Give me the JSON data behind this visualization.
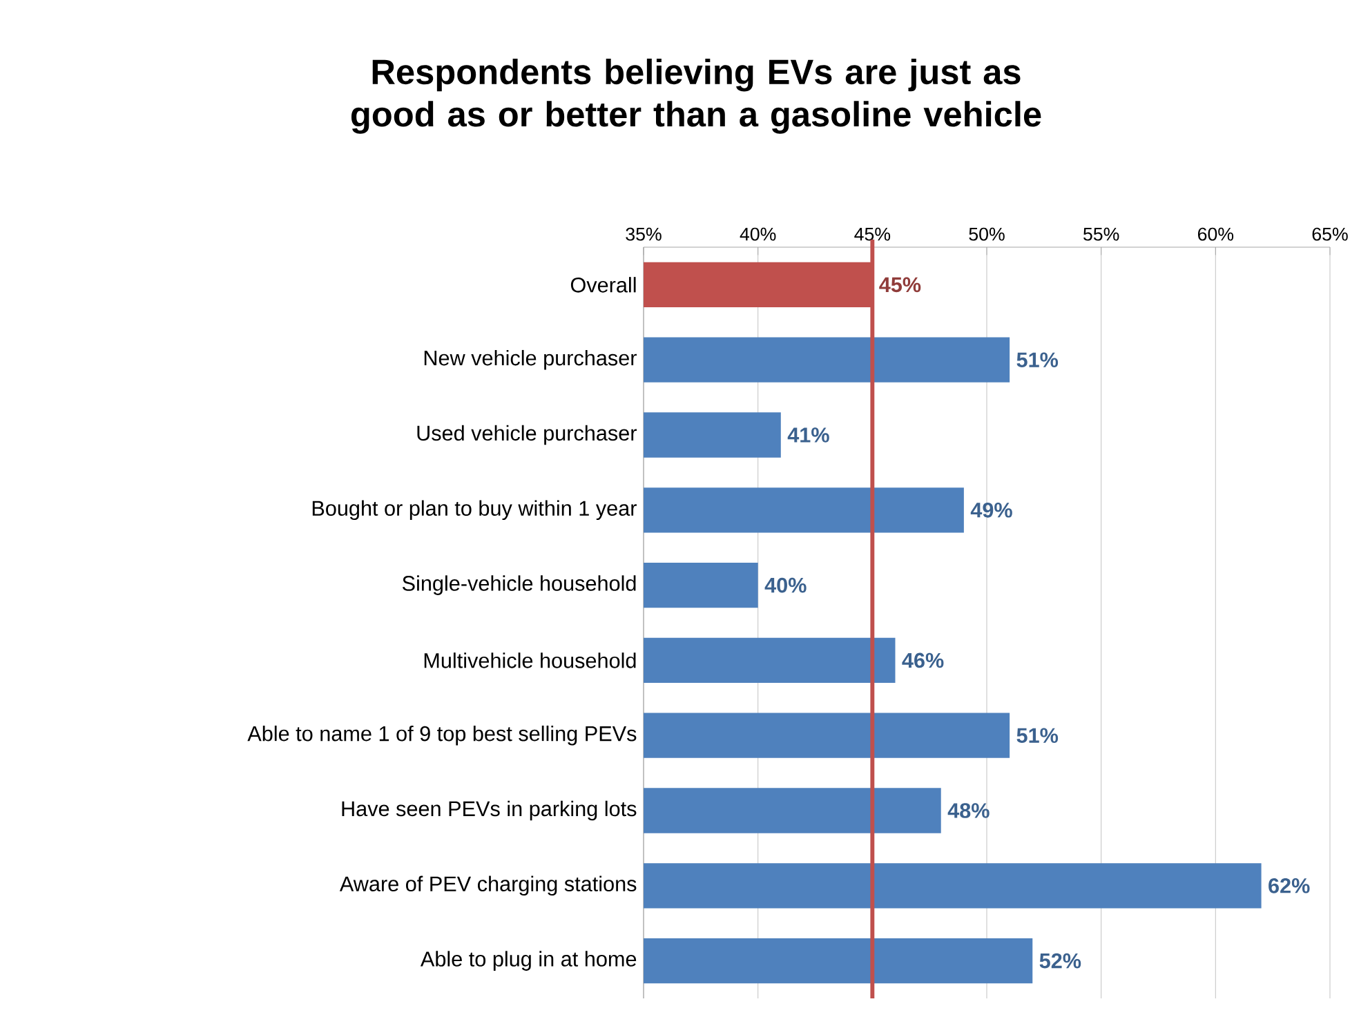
{
  "chart_data": {
    "type": "bar",
    "orientation": "horizontal",
    "title": "Respondents believing EVs are just as good as or better than a gasoline vehicle",
    "categories": [
      "Overall",
      "New vehicle purchaser",
      "Used vehicle purchaser",
      "Bought or plan to buy within 1 year",
      "Single-vehicle household",
      "Multivehicle household",
      "Able to name 1 of 9 top best selling PEVs",
      "Have seen PEVs in parking lots",
      "Aware of PEV charging stations",
      "Able to plug in at home"
    ],
    "values": [
      45,
      51,
      41,
      49,
      40,
      46,
      51,
      48,
      62,
      52
    ],
    "value_labels": [
      "45%",
      "51%",
      "41%",
      "49%",
      "40%",
      "46%",
      "51%",
      "48%",
      "62%",
      "52%"
    ],
    "colors": [
      "#c0504d",
      "#4f81bd",
      "#4f81bd",
      "#4f81bd",
      "#4f81bd",
      "#4f81bd",
      "#4f81bd",
      "#4f81bd",
      "#4f81bd",
      "#4f81bd"
    ],
    "xlim": [
      35,
      65
    ],
    "xticks": [
      {
        "value": 35,
        "label": "35%"
      },
      {
        "value": 40,
        "label": "40%"
      },
      {
        "value": 45,
        "label": "45%"
      },
      {
        "value": 50,
        "label": "50%"
      },
      {
        "value": 55,
        "label": "55%"
      },
      {
        "value": 60,
        "label": "60%"
      },
      {
        "value": 65,
        "label": "65%"
      }
    ],
    "grid": "x",
    "ref_lines": [
      {
        "axis": "x",
        "value": 45,
        "color": "#c0504d"
      }
    ]
  }
}
